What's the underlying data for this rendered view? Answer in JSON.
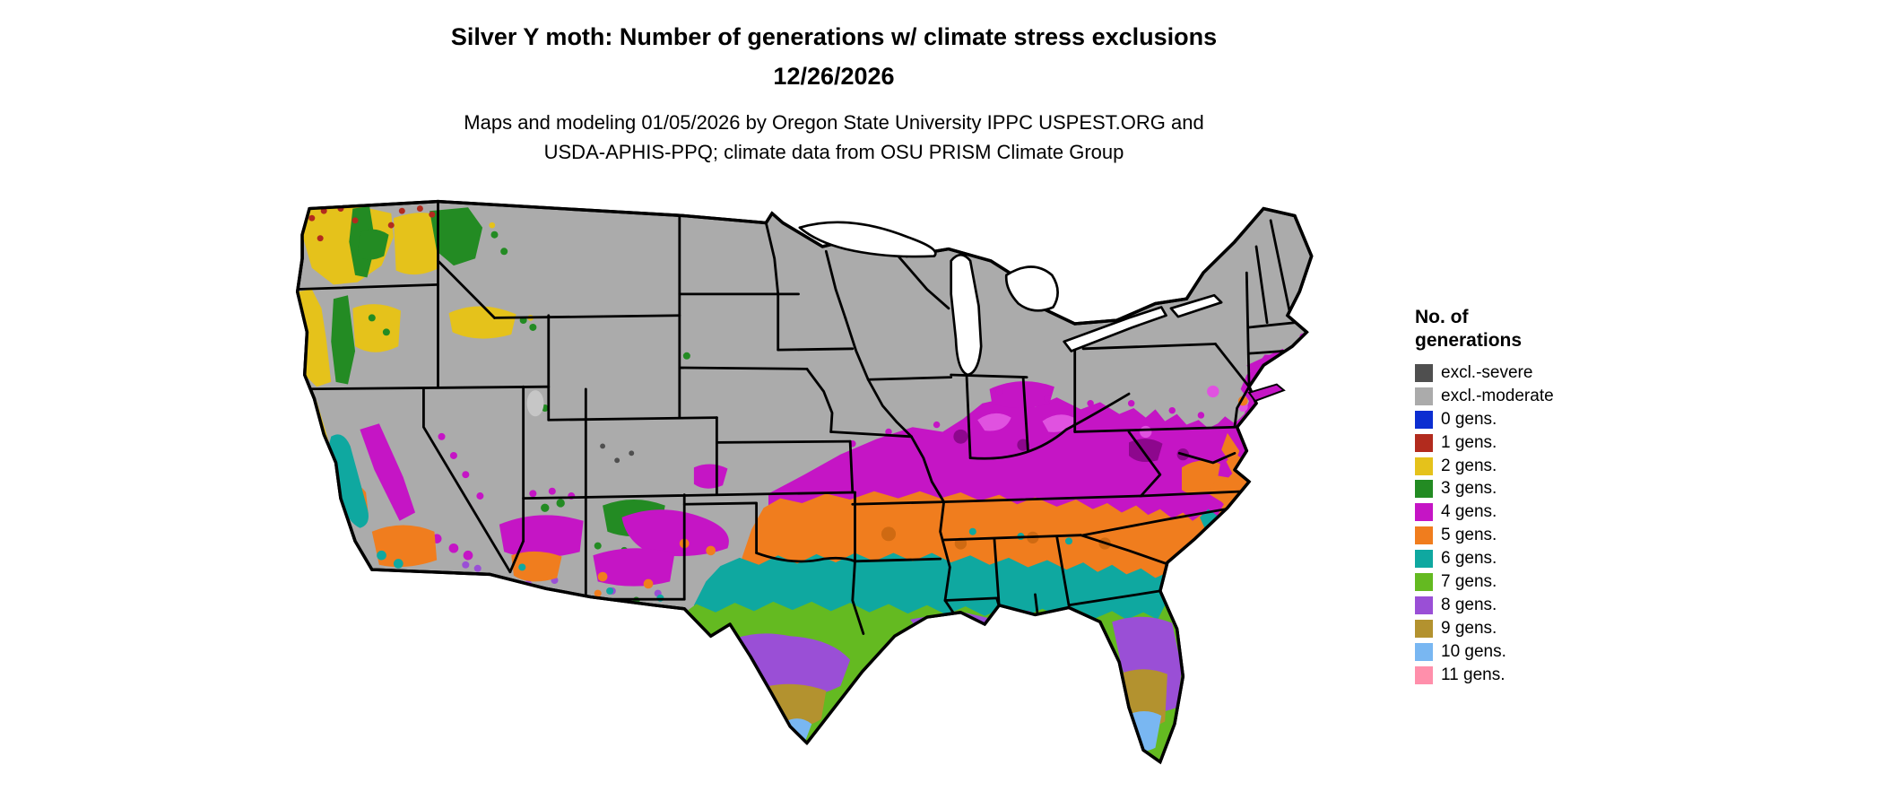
{
  "header": {
    "title": "Silver Y moth: Number of generations w/ climate stress exclusions",
    "date": "12/26/2026",
    "credits_line1": "Maps and modeling 01/05/2026 by Oregon State University IPPC USPEST.ORG and",
    "credits_line2": "USDA-APHIS-PPQ; climate data from OSU PRISM Climate Group"
  },
  "legend": {
    "title_line1": "No. of",
    "title_line2": "generations",
    "entries": [
      {
        "label": "excl.-severe",
        "color": "#4f4f4f"
      },
      {
        "label": "excl.-moderate",
        "color": "#ababab"
      },
      {
        "label": "0 gens.",
        "color": "#0c2ed1"
      },
      {
        "label": "1 gens.",
        "color": "#b22b1e"
      },
      {
        "label": "2 gens.",
        "color": "#e5c21b"
      },
      {
        "label": "3 gens.",
        "color": "#238b23"
      },
      {
        "label": "4 gens.",
        "color": "#c515c5"
      },
      {
        "label": "5 gens.",
        "color": "#f07d1e"
      },
      {
        "label": "6 gens.",
        "color": "#0fa8a0"
      },
      {
        "label": "7 gens.",
        "color": "#64ba21"
      },
      {
        "label": "8 gens.",
        "color": "#9a4fd6"
      },
      {
        "label": "9 gens.",
        "color": "#b3922f"
      },
      {
        "label": "10 gens.",
        "color": "#79b7f2"
      },
      {
        "label": "11 gens.",
        "color": "#ff8fab"
      }
    ]
  },
  "map": {
    "palette": {
      "magenta_bright": "#e052e0",
      "magenta_deep": "#8d078d",
      "orange_deep": "#cf6a12",
      "salt_lake_gray": "#c6c6c6",
      "lake": "#ffffff",
      "border": "#000000"
    }
  }
}
